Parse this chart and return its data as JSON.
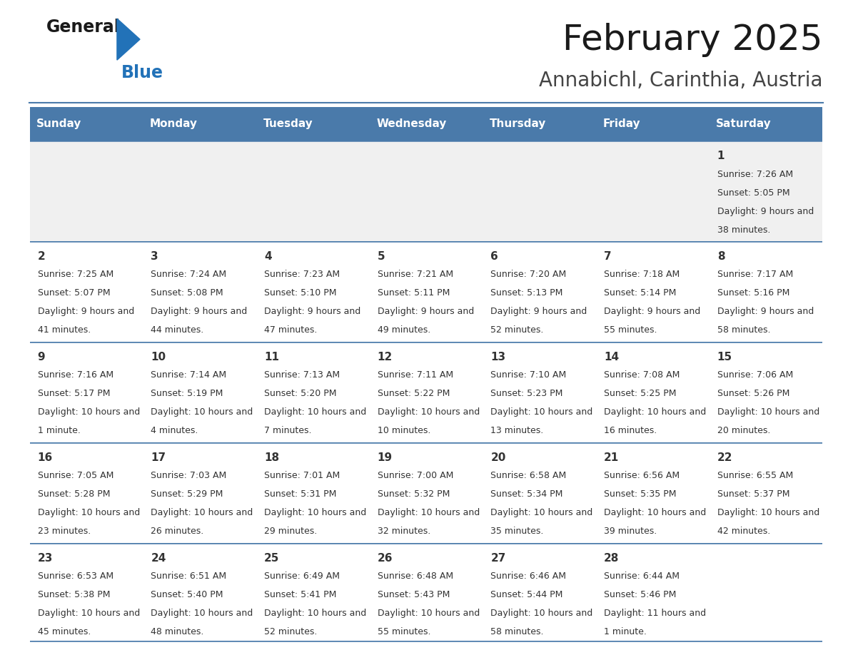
{
  "title": "February 2025",
  "subtitle": "Annabichl, Carinthia, Austria",
  "header_color": "#4a7aaa",
  "header_text_color": "#ffffff",
  "day_names": [
    "Sunday",
    "Monday",
    "Tuesday",
    "Wednesday",
    "Thursday",
    "Friday",
    "Saturday"
  ],
  "bg_color": "#ffffff",
  "cell_bg_row0": "#f0f0f0",
  "cell_bg_default": "#ffffff",
  "border_color": "#4a7aaa",
  "text_color": "#333333",
  "days": [
    {
      "day": 1,
      "col": 6,
      "row": 0,
      "sunrise": "7:26 AM",
      "sunset": "5:05 PM",
      "daylight": "9 hours and 38 minutes."
    },
    {
      "day": 2,
      "col": 0,
      "row": 1,
      "sunrise": "7:25 AM",
      "sunset": "5:07 PM",
      "daylight": "9 hours and 41 minutes."
    },
    {
      "day": 3,
      "col": 1,
      "row": 1,
      "sunrise": "7:24 AM",
      "sunset": "5:08 PM",
      "daylight": "9 hours and 44 minutes."
    },
    {
      "day": 4,
      "col": 2,
      "row": 1,
      "sunrise": "7:23 AM",
      "sunset": "5:10 PM",
      "daylight": "9 hours and 47 minutes."
    },
    {
      "day": 5,
      "col": 3,
      "row": 1,
      "sunrise": "7:21 AM",
      "sunset": "5:11 PM",
      "daylight": "9 hours and 49 minutes."
    },
    {
      "day": 6,
      "col": 4,
      "row": 1,
      "sunrise": "7:20 AM",
      "sunset": "5:13 PM",
      "daylight": "9 hours and 52 minutes."
    },
    {
      "day": 7,
      "col": 5,
      "row": 1,
      "sunrise": "7:18 AM",
      "sunset": "5:14 PM",
      "daylight": "9 hours and 55 minutes."
    },
    {
      "day": 8,
      "col": 6,
      "row": 1,
      "sunrise": "7:17 AM",
      "sunset": "5:16 PM",
      "daylight": "9 hours and 58 minutes."
    },
    {
      "day": 9,
      "col": 0,
      "row": 2,
      "sunrise": "7:16 AM",
      "sunset": "5:17 PM",
      "daylight": "10 hours and 1 minute."
    },
    {
      "day": 10,
      "col": 1,
      "row": 2,
      "sunrise": "7:14 AM",
      "sunset": "5:19 PM",
      "daylight": "10 hours and 4 minutes."
    },
    {
      "day": 11,
      "col": 2,
      "row": 2,
      "sunrise": "7:13 AM",
      "sunset": "5:20 PM",
      "daylight": "10 hours and 7 minutes."
    },
    {
      "day": 12,
      "col": 3,
      "row": 2,
      "sunrise": "7:11 AM",
      "sunset": "5:22 PM",
      "daylight": "10 hours and 10 minutes."
    },
    {
      "day": 13,
      "col": 4,
      "row": 2,
      "sunrise": "7:10 AM",
      "sunset": "5:23 PM",
      "daylight": "10 hours and 13 minutes."
    },
    {
      "day": 14,
      "col": 5,
      "row": 2,
      "sunrise": "7:08 AM",
      "sunset": "5:25 PM",
      "daylight": "10 hours and 16 minutes."
    },
    {
      "day": 15,
      "col": 6,
      "row": 2,
      "sunrise": "7:06 AM",
      "sunset": "5:26 PM",
      "daylight": "10 hours and 20 minutes."
    },
    {
      "day": 16,
      "col": 0,
      "row": 3,
      "sunrise": "7:05 AM",
      "sunset": "5:28 PM",
      "daylight": "10 hours and 23 minutes."
    },
    {
      "day": 17,
      "col": 1,
      "row": 3,
      "sunrise": "7:03 AM",
      "sunset": "5:29 PM",
      "daylight": "10 hours and 26 minutes."
    },
    {
      "day": 18,
      "col": 2,
      "row": 3,
      "sunrise": "7:01 AM",
      "sunset": "5:31 PM",
      "daylight": "10 hours and 29 minutes."
    },
    {
      "day": 19,
      "col": 3,
      "row": 3,
      "sunrise": "7:00 AM",
      "sunset": "5:32 PM",
      "daylight": "10 hours and 32 minutes."
    },
    {
      "day": 20,
      "col": 4,
      "row": 3,
      "sunrise": "6:58 AM",
      "sunset": "5:34 PM",
      "daylight": "10 hours and 35 minutes."
    },
    {
      "day": 21,
      "col": 5,
      "row": 3,
      "sunrise": "6:56 AM",
      "sunset": "5:35 PM",
      "daylight": "10 hours and 39 minutes."
    },
    {
      "day": 22,
      "col": 6,
      "row": 3,
      "sunrise": "6:55 AM",
      "sunset": "5:37 PM",
      "daylight": "10 hours and 42 minutes."
    },
    {
      "day": 23,
      "col": 0,
      "row": 4,
      "sunrise": "6:53 AM",
      "sunset": "5:38 PM",
      "daylight": "10 hours and 45 minutes."
    },
    {
      "day": 24,
      "col": 1,
      "row": 4,
      "sunrise": "6:51 AM",
      "sunset": "5:40 PM",
      "daylight": "10 hours and 48 minutes."
    },
    {
      "day": 25,
      "col": 2,
      "row": 4,
      "sunrise": "6:49 AM",
      "sunset": "5:41 PM",
      "daylight": "10 hours and 52 minutes."
    },
    {
      "day": 26,
      "col": 3,
      "row": 4,
      "sunrise": "6:48 AM",
      "sunset": "5:43 PM",
      "daylight": "10 hours and 55 minutes."
    },
    {
      "day": 27,
      "col": 4,
      "row": 4,
      "sunrise": "6:46 AM",
      "sunset": "5:44 PM",
      "daylight": "10 hours and 58 minutes."
    },
    {
      "day": 28,
      "col": 5,
      "row": 4,
      "sunrise": "6:44 AM",
      "sunset": "5:46 PM",
      "daylight": "11 hours and 1 minute."
    }
  ],
  "logo_color1": "#1a1a1a",
  "logo_color2": "#2272b8",
  "logo_triangle_color": "#2272b8",
  "title_fontsize": 36,
  "subtitle_fontsize": 20,
  "day_header_fontsize": 11,
  "day_num_fontsize": 11,
  "cell_text_fontsize": 9
}
